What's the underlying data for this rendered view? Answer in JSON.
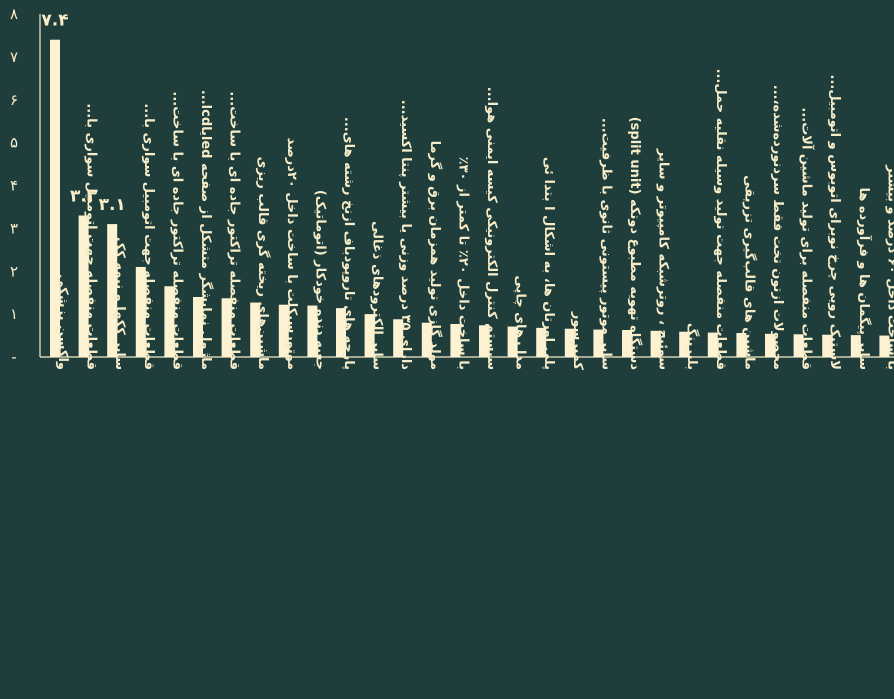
{
  "chart_data": {
    "type": "bar",
    "title": "",
    "xlabel": "",
    "ylabel": "",
    "ylim": [
      0,
      8
    ],
    "y_ticks": [
      "-",
      "۱",
      "۲",
      "۳",
      "۴",
      "۵",
      "۶",
      "۷",
      "۸"
    ],
    "grid": false,
    "legend": "none",
    "bar_color": "#fdf3d2",
    "background_color": "#1e3d3b",
    "text_color": "#f6ecc8",
    "categories": [
      "واکسن پزشکی",
      "قطعات منفصله جهت اتومبیل سواری با...",
      "سایر ککها و نیمه کک",
      "قطعات منفصله جهت اتومبیل سواری با...",
      "قطعات منفصله تراکتور جاده ای با ساخت...",
      "ماژول نمایشگر متشکل از صفحه ledیاlcd...",
      "قطعات منفصله تراکتور جاده ای با ساخت...",
      "ماشین‌های ریخته گری قالب ریزی",
      "موتورسیکلت با ساخت داخل ۲۰درصد",
      "جعبه دنده خودکار (اتوماتیک)",
      "پارچه های تاروپودباف ازنخ رشته های...",
      "سایر الکترودهای ذغالی",
      "دارای ۳۵ درصد وزنی یا بیشتر پنتا اکسید...",
      "مولد گازی تولید همزمان برق و گرما",
      "با ساخت داخل ۲۰٪ تا کمتر از ۳۰٪",
      "سیستم کنترل الکترونیکی کیسه ایمنی هوا...",
      "مدا رهای چاپی",
      "پلی اورتان ها، به اشکال ا بتدا ئی",
      "کمپرسور",
      "سایر موتور پیستونی ثانوی با ظرفیت...",
      "دستگاه تهویه مطبوع دوتکه (split unit)",
      "سوئیچ ، روترشبکه کامپیوتر و سایر",
      "بلبرینگ",
      "قطعات منفصله جهت تولید وسیله نقلیه حمل...",
      "ماشین های قالب‌گیری تزریقی",
      "محصولات ازتون تخت فقط سردنورده‌شده،...",
      "قطعات منفصله برای تولید ماشین آلات...",
      "لاستیک رویی چرخ نوبرای اتوبوس و اتومبیل...",
      "سایر پیگمان ها و فرآورده ها",
      "با ساخت داخل ۶۰ درصد و بیشتر"
    ],
    "values": [
      7.4,
      3.3,
      3.1,
      2.1,
      1.65,
      1.4,
      1.37,
      1.27,
      1.22,
      1.2,
      1.14,
      1.0,
      0.88,
      0.8,
      0.77,
      0.74,
      0.71,
      0.68,
      0.66,
      0.64,
      0.63,
      0.61,
      0.59,
      0.57,
      0.56,
      0.54,
      0.53,
      0.52,
      0.51,
      0.5
    ],
    "data_labels": [
      {
        "index": 0,
        "text": "۷.۴"
      },
      {
        "index": 1,
        "text": "۳.۳"
      },
      {
        "index": 2,
        "text": "۳.۱"
      }
    ]
  }
}
